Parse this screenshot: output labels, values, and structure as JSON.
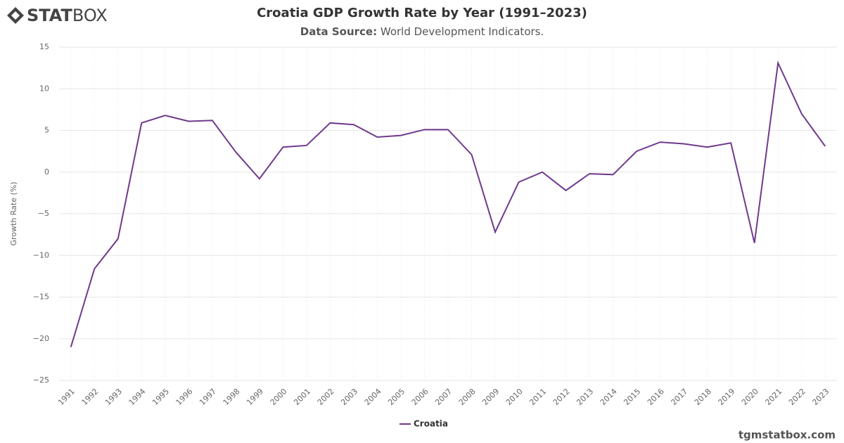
{
  "logo": {
    "bold": "STAT",
    "light": "BOX"
  },
  "footer": "tgmstatbox.com",
  "chart_data": {
    "type": "line",
    "title": "Croatia GDP Growth Rate by Year (1991–2023)",
    "subtitle_label": "Data Source:",
    "subtitle_text": "World Development Indicators.",
    "y_label": "Growth Rate (%)",
    "categories": [
      "1991",
      "1992",
      "1993",
      "1994",
      "1995",
      "1996",
      "1997",
      "1998",
      "1999",
      "2000",
      "2001",
      "2002",
      "2003",
      "2004",
      "2005",
      "2006",
      "2007",
      "2008",
      "2009",
      "2010",
      "2011",
      "2012",
      "2013",
      "2014",
      "2015",
      "2016",
      "2017",
      "2018",
      "2019",
      "2020",
      "2021",
      "2022",
      "2023"
    ],
    "series": [
      {
        "name": "Croatia",
        "color": "#6f3a8c",
        "values": [
          -21.0,
          -11.6,
          -8.0,
          5.9,
          6.8,
          6.1,
          6.2,
          2.4,
          -0.8,
          3.0,
          3.2,
          5.9,
          5.7,
          4.2,
          4.4,
          5.1,
          5.1,
          2.1,
          -7.2,
          -1.2,
          0.0,
          -2.2,
          -0.2,
          -0.3,
          2.5,
          3.6,
          3.4,
          3.0,
          3.5,
          -8.5,
          13.1,
          7.0,
          3.1
        ]
      }
    ],
    "ylim": [
      -25,
      15
    ],
    "yticks": [
      {
        "value": -25,
        "label": "−25"
      },
      {
        "value": -20,
        "label": "−20"
      },
      {
        "value": -15,
        "label": "−15"
      },
      {
        "value": -10,
        "label": "−10"
      },
      {
        "value": -5,
        "label": "−5"
      },
      0,
      5,
      10,
      15
    ],
    "grid": true
  }
}
